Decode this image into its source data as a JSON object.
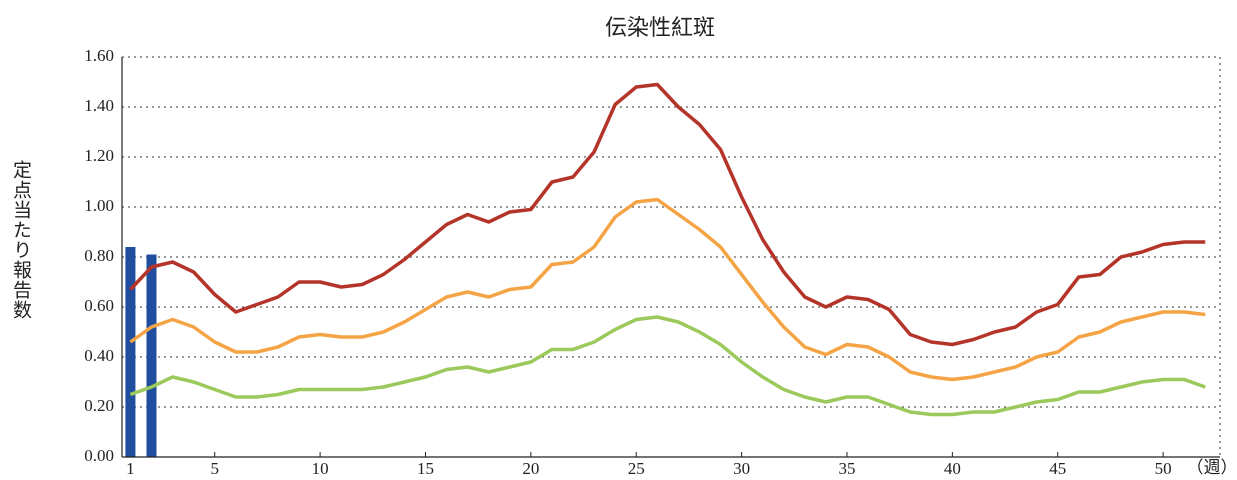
{
  "chart_data": {
    "type": "line",
    "title": "伝染性紅斑",
    "y_label": "定点当たり報告数",
    "x_label": "（週）",
    "x": [
      1,
      2,
      3,
      4,
      5,
      6,
      7,
      8,
      9,
      10,
      11,
      12,
      13,
      14,
      15,
      16,
      17,
      18,
      19,
      20,
      21,
      22,
      23,
      24,
      25,
      26,
      27,
      28,
      29,
      30,
      31,
      32,
      33,
      34,
      35,
      36,
      37,
      38,
      39,
      40,
      41,
      42,
      43,
      44,
      45,
      46,
      47,
      48,
      49,
      50,
      51,
      52
    ],
    "series": [
      {
        "type": "bar",
        "color": "#1f4e9e",
        "x": [
          1,
          2
        ],
        "values": [
          0.84,
          0.81
        ]
      },
      {
        "color": "#b5342a",
        "values": [
          0.67,
          0.76,
          0.78,
          0.74,
          0.65,
          0.58,
          0.61,
          0.64,
          0.7,
          0.7,
          0.68,
          0.69,
          0.73,
          0.79,
          0.86,
          0.93,
          0.97,
          0.94,
          0.98,
          0.99,
          1.1,
          1.12,
          1.22,
          1.41,
          1.48,
          1.49,
          1.4,
          1.33,
          1.23,
          1.04,
          0.87,
          0.74,
          0.64,
          0.6,
          0.64,
          0.63,
          0.59,
          0.49,
          0.46,
          0.45,
          0.47,
          0.5,
          0.52,
          0.58,
          0.61,
          0.72,
          0.73,
          0.8,
          0.82,
          0.85,
          0.86,
          0.86
        ]
      },
      {
        "color": "#f5a445",
        "values": [
          0.46,
          0.52,
          0.55,
          0.52,
          0.46,
          0.42,
          0.42,
          0.44,
          0.48,
          0.49,
          0.48,
          0.48,
          0.5,
          0.54,
          0.59,
          0.64,
          0.66,
          0.64,
          0.67,
          0.68,
          0.77,
          0.78,
          0.84,
          0.96,
          1.02,
          1.03,
          0.97,
          0.91,
          0.84,
          0.73,
          0.62,
          0.52,
          0.44,
          0.41,
          0.45,
          0.44,
          0.4,
          0.34,
          0.32,
          0.31,
          0.32,
          0.34,
          0.36,
          0.4,
          0.42,
          0.48,
          0.5,
          0.54,
          0.56,
          0.58,
          0.58,
          0.57
        ]
      },
      {
        "color": "#9bc95b",
        "values": [
          0.25,
          0.28,
          0.32,
          0.3,
          0.27,
          0.24,
          0.24,
          0.25,
          0.27,
          0.27,
          0.27,
          0.27,
          0.28,
          0.3,
          0.32,
          0.35,
          0.36,
          0.34,
          0.36,
          0.38,
          0.43,
          0.43,
          0.46,
          0.51,
          0.55,
          0.56,
          0.54,
          0.5,
          0.45,
          0.38,
          0.32,
          0.27,
          0.24,
          0.22,
          0.24,
          0.24,
          0.21,
          0.18,
          0.17,
          0.17,
          0.18,
          0.18,
          0.2,
          0.22,
          0.23,
          0.26,
          0.26,
          0.28,
          0.3,
          0.31,
          0.31,
          0.28
        ]
      }
    ],
    "xlim": [
      0.6,
      52.7
    ],
    "xticks": [
      1,
      5,
      10,
      15,
      20,
      25,
      30,
      35,
      40,
      45,
      50
    ],
    "ylim": [
      0,
      1.6
    ],
    "yticks": [
      {
        "value": 0,
        "label": "0.00"
      },
      {
        "value": 0.2,
        "label": "0.20"
      },
      {
        "value": 0.4,
        "label": "0.40"
      },
      {
        "value": 0.6,
        "label": "0.60"
      },
      {
        "value": 0.8,
        "label": "0.80"
      },
      {
        "value": 1.0,
        "label": "1.00"
      },
      {
        "value": 1.2,
        "label": "1.20"
      },
      {
        "value": 1.4,
        "label": "1.40"
      },
      {
        "value": 1.6,
        "label": "1.60"
      }
    ],
    "grid": true
  }
}
